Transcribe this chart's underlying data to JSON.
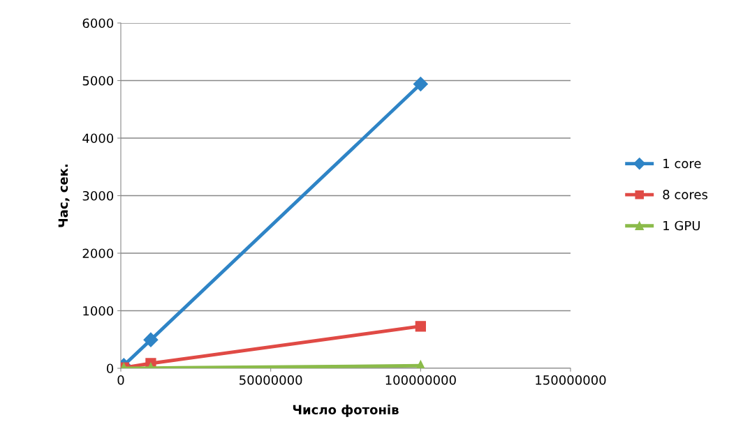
{
  "chart_data": {
    "type": "line",
    "xlabel": "Число фотонів",
    "ylabel": "Час, сек.",
    "x": [
      1000000,
      10000000,
      100000000
    ],
    "xlim": [
      0,
      150000000
    ],
    "xticks": [
      0,
      50000000,
      100000000,
      150000000
    ],
    "ylim": [
      0,
      6000
    ],
    "yticks": [
      0,
      1000,
      2000,
      3000,
      4000,
      5000,
      6000
    ],
    "grid": "y",
    "legend": "right",
    "line_style": "solid",
    "series": [
      {
        "name": "1 core",
        "color": "#2e84c6",
        "marker": "diamond",
        "values": [
          50,
          495,
          4940
        ]
      },
      {
        "name": "8 cores",
        "color": "#e04a45",
        "marker": "square",
        "values": [
          10,
          85,
          730
        ]
      },
      {
        "name": "1 GPU",
        "color": "#8bbb4a",
        "marker": "triangle",
        "values": [
          2,
          5,
          45
        ]
      }
    ]
  }
}
